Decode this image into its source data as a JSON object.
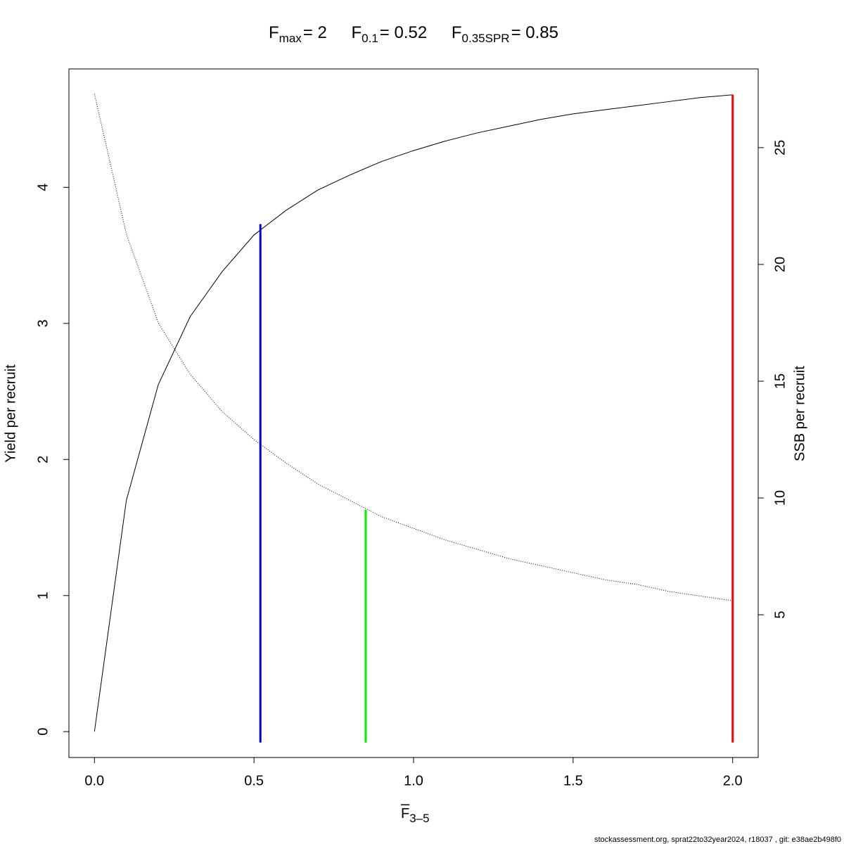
{
  "chart_data": {
    "type": "line",
    "title_parts": [
      {
        "base": "F",
        "sub": "max",
        "rest": "= 2"
      },
      {
        "base": "F",
        "sub": "0.1",
        "rest": "= 0.52"
      },
      {
        "base": "F",
        "sub": "0.35SPR",
        "rest": "= 0.85"
      }
    ],
    "x_label": {
      "base": "F",
      "sub": "3–5"
    },
    "y_label": "Yield per recruit",
    "y2_label": "SSB per recruit",
    "footer": "stockassessment.org, sprat22to32year2024, r18037 , git: e38ae2b498f0",
    "x": [
      0,
      0.1,
      0.2,
      0.3,
      0.4,
      0.5,
      0.6,
      0.7,
      0.8,
      0.9,
      1.0,
      1.1,
      1.2,
      1.3,
      1.4,
      1.5,
      1.6,
      1.7,
      1.8,
      1.9,
      2.0
    ],
    "series": [
      {
        "color": "#000000",
        "style": "solid",
        "values": [
          0,
          1.7,
          2.55,
          3.05,
          3.38,
          3.65,
          3.83,
          3.98,
          4.09,
          4.19,
          4.27,
          4.34,
          4.4,
          4.45,
          4.5,
          4.54,
          4.57,
          4.6,
          4.63,
          4.66,
          4.68
        ]
      },
      {
        "color": "#000000",
        "style": "dotted",
        "axis": "y2",
        "values": [
          27.3,
          21.3,
          17.5,
          15.3,
          13.7,
          12.5,
          11.5,
          10.6,
          9.9,
          9.2,
          8.7,
          8.2,
          7.8,
          7.4,
          7.1,
          6.8,
          6.5,
          6.3,
          6.0,
          5.8,
          5.6
        ]
      }
    ],
    "reference_lines": [
      {
        "x": 0.52,
        "y": 3.73,
        "ymin": -0.08,
        "color": "#0000cc"
      },
      {
        "x": 0.85,
        "y": 9.5,
        "axis": "y2",
        "ymin": -0.08,
        "color": "#00ee00"
      },
      {
        "x": 2,
        "y": 4.68,
        "ymin": -0.08,
        "color": "#ff0000"
      }
    ],
    "xlim": [
      -0.08,
      2.08
    ],
    "xticks": [
      {
        "value": 0,
        "label": "0.0"
      },
      {
        "value": 0.5,
        "label": "0.5"
      },
      {
        "value": 1,
        "label": "1.0"
      },
      {
        "value": 1.5,
        "label": "1.5"
      },
      {
        "value": 2,
        "label": "2.0"
      }
    ],
    "ylim": [
      -0.19,
      4.87
    ],
    "yticks": [
      0,
      1,
      2,
      3,
      4
    ],
    "y2lim": [
      -1.11,
      28.37
    ],
    "y2ticks": [
      5,
      10,
      15,
      20,
      25
    ]
  }
}
